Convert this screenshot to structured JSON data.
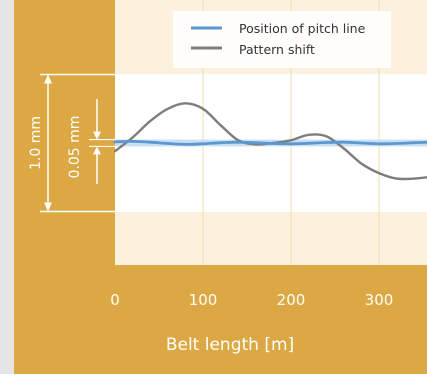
{
  "colors": {
    "frame": "#e5e5e5",
    "gold": "#dba843",
    "plot_bg": "#ffffff",
    "outer_band": "#fbf1dd",
    "grid": "#f1deb0",
    "pitch_line": "#5b97d1",
    "pitch_band": "#c4dbf2",
    "pattern_shift": "#7d7d7d",
    "dimension": "#ffffff"
  },
  "chart_data": {
    "type": "line",
    "xlabel": "Belt length [m]",
    "x_ticks": [
      "0",
      "100",
      "200",
      "300"
    ],
    "xlim": [
      0,
      355
    ],
    "ylim": [
      -0.55,
      0.55
    ],
    "y_unit": "mm",
    "grid": "vertical",
    "legend": {
      "placement": "top-right",
      "entries": [
        "Position of pitch line",
        "Pattern shift"
      ]
    },
    "annotations": [
      {
        "label": "1.0 mm",
        "from": -0.5,
        "to": 0.5
      },
      {
        "label": "0.05 mm",
        "from": -0.025,
        "to": 0.025
      }
    ],
    "series": [
      {
        "name": "Position of pitch line",
        "x": [
          0,
          20,
          40,
          60,
          80,
          100,
          120,
          140,
          160,
          180,
          200,
          220,
          240,
          260,
          280,
          300,
          320,
          340,
          355
        ],
        "y": [
          0.008,
          0.012,
          0.006,
          -0.004,
          -0.01,
          -0.006,
          0.002,
          0.006,
          0.002,
          -0.004,
          -0.006,
          -0.002,
          0.004,
          0.006,
          0.0,
          -0.006,
          -0.004,
          0.002,
          0.006
        ]
      },
      {
        "name": "Pattern shift",
        "x": [
          0,
          20,
          40,
          60,
          80,
          100,
          120,
          140,
          160,
          180,
          200,
          220,
          240,
          260,
          280,
          300,
          320,
          340,
          355
        ],
        "y": [
          -0.06,
          0.04,
          0.16,
          0.25,
          0.29,
          0.25,
          0.13,
          0.02,
          -0.01,
          0.0,
          0.02,
          0.06,
          0.05,
          -0.04,
          -0.15,
          -0.22,
          -0.26,
          -0.26,
          -0.25
        ]
      }
    ]
  }
}
